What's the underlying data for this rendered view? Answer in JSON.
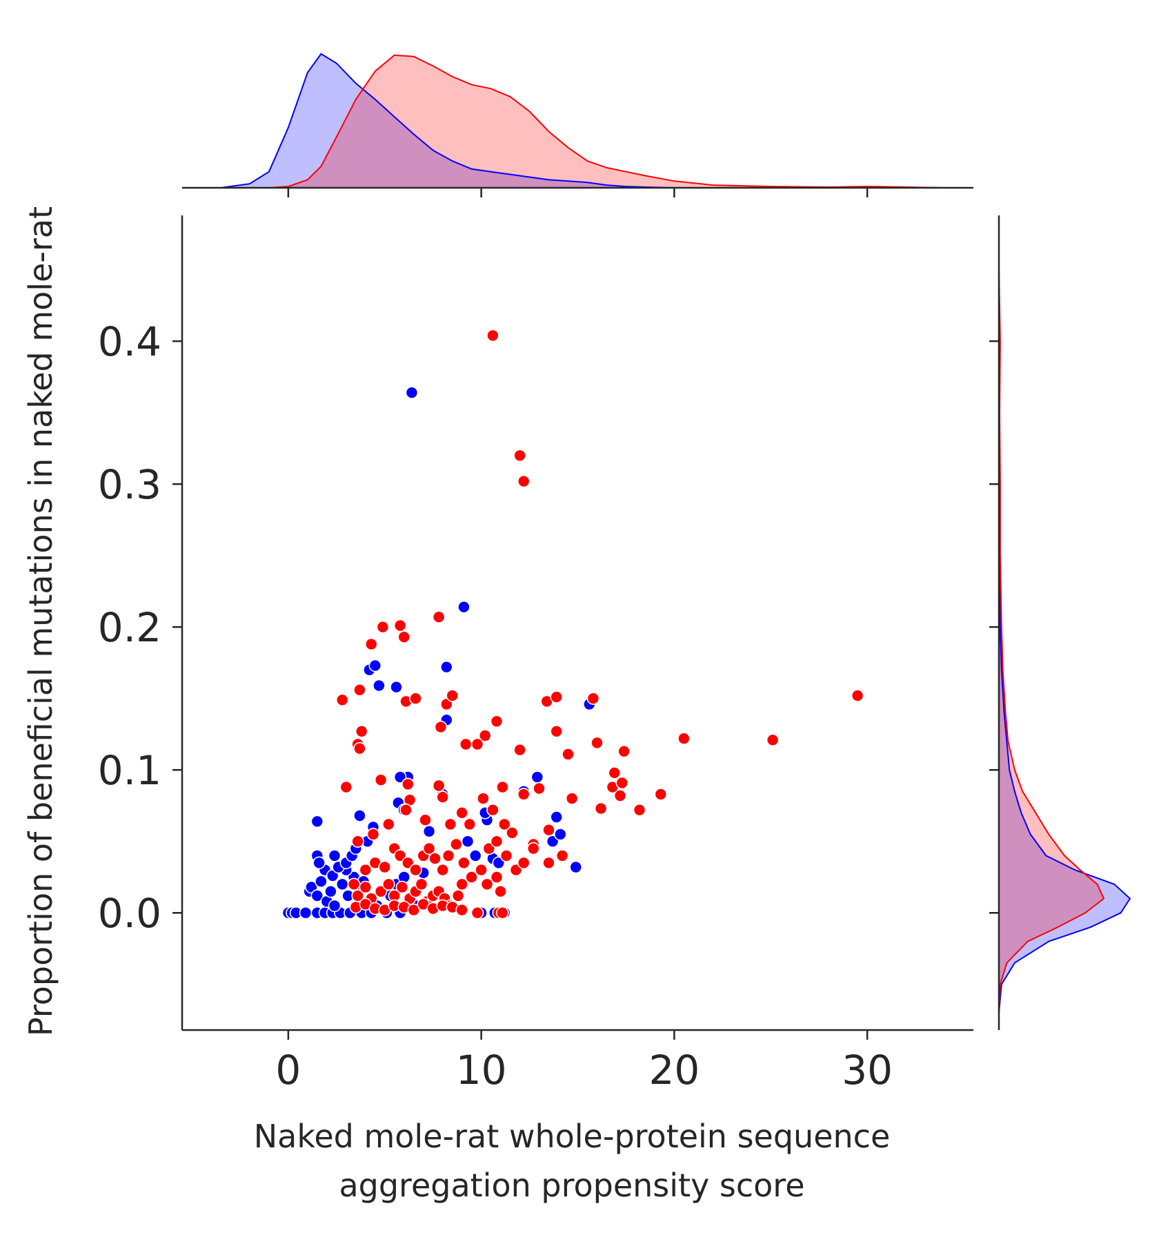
{
  "chart_data": {
    "type": "scatter",
    "title": "",
    "xlabel_lines": [
      "Naked mole-rat whole-protein sequence",
      "aggregation propensity score"
    ],
    "ylabel": "Proportion of beneficial mutations in naked mole-rat",
    "xlim": [
      -5.5,
      35.5
    ],
    "ylim": [
      -0.082,
      0.488
    ],
    "xticks": [
      0,
      10,
      20,
      30
    ],
    "xtick_labels": [
      "0",
      "10",
      "20",
      "30"
    ],
    "yticks": [
      0.0,
      0.1,
      0.2,
      0.3,
      0.4
    ],
    "ytick_labels": [
      "0.0",
      "0.1",
      "0.2",
      "0.3",
      "0.4"
    ],
    "grid": false,
    "legend": "none",
    "marginals": "kde (top for x, right for y)",
    "series": [
      {
        "color": "#0000ff",
        "points": [
          [
            0,
            0
          ],
          [
            0.2,
            0
          ],
          [
            0.4,
            0
          ],
          [
            0.9,
            0
          ],
          [
            1.5,
            0
          ],
          [
            1.9,
            0
          ],
          [
            2.3,
            0
          ],
          [
            2.7,
            0
          ],
          [
            3.2,
            0
          ],
          [
            3.8,
            0
          ],
          [
            4.3,
            0
          ],
          [
            5.1,
            0
          ],
          [
            5.8,
            0
          ],
          [
            10,
            0
          ],
          [
            11.2,
            0
          ],
          [
            10.7,
            0
          ],
          [
            1.1,
            0.015
          ],
          [
            1.2,
            0.018
          ],
          [
            1.5,
            0.012
          ],
          [
            1.7,
            0.022
          ],
          [
            2.0,
            0.008
          ],
          [
            2.2,
            0.015
          ],
          [
            2.4,
            0.005
          ],
          [
            1.9,
            0.03
          ],
          [
            2.3,
            0.026
          ],
          [
            2.8,
            0.02
          ],
          [
            3.1,
            0.012
          ],
          [
            3.4,
            0.025
          ],
          [
            3.7,
            0.018
          ],
          [
            3.9,
            0.022
          ],
          [
            4.3,
            0.01
          ],
          [
            4.6,
            0.005
          ],
          [
            5.0,
            0.015
          ],
          [
            5.3,
            0.012
          ],
          [
            5.6,
            0.02
          ],
          [
            6.0,
            0.025
          ],
          [
            6.6,
            0.005
          ],
          [
            7.0,
            0.028
          ],
          [
            3.0,
            0.03
          ],
          [
            1.5,
            0.04
          ],
          [
            1.6,
            0.035
          ],
          [
            2.4,
            0.04
          ],
          [
            2.6,
            0.032
          ],
          [
            3.0,
            0.035
          ],
          [
            3.3,
            0.04
          ],
          [
            3.5,
            0.045
          ],
          [
            4.4,
            0.06
          ],
          [
            1.5,
            0.064
          ],
          [
            3.7,
            0.068
          ],
          [
            4.1,
            0.05
          ],
          [
            6.2,
            0.095
          ],
          [
            5.8,
            0.095
          ],
          [
            5.7,
            0.077
          ],
          [
            6.0,
            0.072
          ],
          [
            7.3,
            0.057
          ],
          [
            9.3,
            0.05
          ],
          [
            9.7,
            0.04
          ],
          [
            10.3,
            0.065
          ],
          [
            10.2,
            0.07
          ],
          [
            10.6,
            0.038
          ],
          [
            10.9,
            0.035
          ],
          [
            12.2,
            0.085
          ],
          [
            12.9,
            0.095
          ],
          [
            13.5,
            0.058
          ],
          [
            13.7,
            0.05
          ],
          [
            13.9,
            0.067
          ],
          [
            14.1,
            0.055
          ],
          [
            14.9,
            0.032
          ],
          [
            8.0,
            0.083
          ],
          [
            4.2,
            0.17
          ],
          [
            4.5,
            0.173
          ],
          [
            4.7,
            0.159
          ],
          [
            5.6,
            0.158
          ],
          [
            6.4,
            0.364
          ],
          [
            9.1,
            0.214
          ],
          [
            8.2,
            0.172
          ],
          [
            8.2,
            0.135
          ],
          [
            15.6,
            0.146
          ]
        ]
      },
      {
        "color": "#ff0000",
        "points": [
          [
            10.6,
            0.404
          ],
          [
            12.0,
            0.32
          ],
          [
            12.2,
            0.302
          ],
          [
            5.8,
            0.201
          ],
          [
            6.0,
            0.193
          ],
          [
            7.8,
            0.207
          ],
          [
            4.9,
            0.2
          ],
          [
            4.3,
            0.188
          ],
          [
            2.8,
            0.149
          ],
          [
            3.7,
            0.156
          ],
          [
            6.1,
            0.148
          ],
          [
            6.6,
            0.15
          ],
          [
            8.2,
            0.146
          ],
          [
            8.5,
            0.152
          ],
          [
            7.9,
            0.13
          ],
          [
            3.6,
            0.118
          ],
          [
            3.7,
            0.115
          ],
          [
            3.8,
            0.127
          ],
          [
            10.8,
            0.134
          ],
          [
            10.2,
            0.124
          ],
          [
            9.8,
            0.118
          ],
          [
            9.2,
            0.118
          ],
          [
            12.0,
            0.114
          ],
          [
            13.4,
            0.148
          ],
          [
            13.9,
            0.151
          ],
          [
            13.9,
            0.127
          ],
          [
            14.5,
            0.111
          ],
          [
            15.8,
            0.15
          ],
          [
            16.0,
            0.119
          ],
          [
            17.4,
            0.113
          ],
          [
            20.5,
            0.122
          ],
          [
            25.1,
            0.121
          ],
          [
            29.5,
            0.152
          ],
          [
            3.0,
            0.088
          ],
          [
            4.8,
            0.093
          ],
          [
            6.2,
            0.09
          ],
          [
            6.3,
            0.079
          ],
          [
            7.8,
            0.089
          ],
          [
            8.0,
            0.081
          ],
          [
            9.0,
            0.07
          ],
          [
            10.1,
            0.08
          ],
          [
            11.1,
            0.088
          ],
          [
            12.2,
            0.083
          ],
          [
            13.0,
            0.087
          ],
          [
            14.7,
            0.08
          ],
          [
            16.2,
            0.073
          ],
          [
            16.8,
            0.088
          ],
          [
            16.9,
            0.098
          ],
          [
            17.3,
            0.091
          ],
          [
            17.2,
            0.082
          ],
          [
            18.2,
            0.072
          ],
          [
            19.3,
            0.083
          ],
          [
            13.5,
            0.058
          ],
          [
            12.7,
            0.048
          ],
          [
            11.6,
            0.056
          ],
          [
            11.2,
            0.062
          ],
          [
            10.6,
            0.072
          ],
          [
            9.4,
            0.062
          ],
          [
            8.4,
            0.062
          ],
          [
            7.1,
            0.065
          ],
          [
            6.1,
            0.072
          ],
          [
            5.2,
            0.062
          ],
          [
            4.4,
            0.055
          ],
          [
            3.6,
            0.05
          ],
          [
            4.0,
            0.03
          ],
          [
            4.5,
            0.035
          ],
          [
            5.0,
            0.032
          ],
          [
            5.5,
            0.045
          ],
          [
            5.8,
            0.04
          ],
          [
            6.2,
            0.035
          ],
          [
            6.6,
            0.03
          ],
          [
            7.0,
            0.04
          ],
          [
            7.3,
            0.045
          ],
          [
            7.6,
            0.038
          ],
          [
            8.0,
            0.03
          ],
          [
            8.3,
            0.04
          ],
          [
            8.7,
            0.048
          ],
          [
            9.1,
            0.035
          ],
          [
            9.5,
            0.025
          ],
          [
            10.0,
            0.03
          ],
          [
            10.4,
            0.045
          ],
          [
            10.8,
            0.05
          ],
          [
            11.3,
            0.04
          ],
          [
            11.8,
            0.03
          ],
          [
            12.2,
            0.035
          ],
          [
            12.7,
            0.045
          ],
          [
            13.5,
            0.035
          ],
          [
            14.2,
            0.04
          ],
          [
            3.4,
            0.02
          ],
          [
            3.6,
            0.012
          ],
          [
            4.0,
            0.018
          ],
          [
            4.3,
            0.01
          ],
          [
            4.8,
            0.015
          ],
          [
            5.2,
            0.02
          ],
          [
            5.5,
            0.012
          ],
          [
            5.9,
            0.018
          ],
          [
            6.3,
            0.01
          ],
          [
            6.6,
            0.015
          ],
          [
            6.9,
            0.02
          ],
          [
            7.2,
            0.008
          ],
          [
            7.5,
            0.012
          ],
          [
            7.8,
            0.015
          ],
          [
            8.1,
            0.01
          ],
          [
            8.4,
            0.005
          ],
          [
            8.8,
            0.012
          ],
          [
            9.0,
            0.02
          ],
          [
            9.5,
            0.025
          ],
          [
            10.3,
            0.02
          ],
          [
            10.8,
            0.025
          ],
          [
            11.0,
            0.015
          ],
          [
            3.5,
            0.004
          ],
          [
            4.0,
            0.006
          ],
          [
            4.5,
            0.003
          ],
          [
            5.0,
            0.002
          ],
          [
            5.5,
            0.005
          ],
          [
            6.0,
            0.004
          ],
          [
            6.5,
            0.002
          ],
          [
            7.0,
            0.006
          ],
          [
            7.5,
            0.003
          ],
          [
            8.0,
            0.005
          ],
          [
            8.5,
            0.004
          ],
          [
            9.0,
            0.002
          ],
          [
            9.8,
            0.0
          ],
          [
            10.9,
            0.0
          ],
          [
            11.1,
            0.0
          ]
        ]
      }
    ],
    "kde_x": {
      "x": [
        -3.5,
        -2,
        -1,
        0,
        1,
        1.7,
        2.5,
        3.5,
        4.5,
        5.5,
        6.5,
        7.5,
        8.5,
        9.5,
        10.5,
        11.5,
        12.5,
        13.5,
        14.5,
        15.5,
        16.5,
        17.5,
        18.5,
        20,
        22,
        25,
        28,
        30,
        32,
        34
      ],
      "blue": [
        0.0,
        0.03,
        0.12,
        0.45,
        0.86,
        1.0,
        0.93,
        0.78,
        0.66,
        0.53,
        0.4,
        0.28,
        0.2,
        0.14,
        0.12,
        0.1,
        0.08,
        0.06,
        0.05,
        0.04,
        0.02,
        0.01,
        0.005,
        0.0,
        0.0,
        0.0,
        0.0,
        0.0,
        0.0,
        0.0
      ],
      "red": [
        0.0,
        0.0,
        0.0,
        0.01,
        0.06,
        0.16,
        0.38,
        0.66,
        0.87,
        0.99,
        0.98,
        0.91,
        0.83,
        0.77,
        0.74,
        0.68,
        0.57,
        0.42,
        0.3,
        0.2,
        0.15,
        0.12,
        0.09,
        0.05,
        0.02,
        0.01,
        0.005,
        0.01,
        0.005,
        0.0
      ]
    },
    "kde_y": {
      "y": [
        -0.07,
        -0.05,
        -0.035,
        -0.02,
        -0.01,
        0.0,
        0.01,
        0.02,
        0.03,
        0.04,
        0.055,
        0.07,
        0.085,
        0.1,
        0.12,
        0.14,
        0.17,
        0.2,
        0.25,
        0.3,
        0.35,
        0.4,
        0.45
      ],
      "blue": [
        0.0,
        0.02,
        0.12,
        0.38,
        0.7,
        0.93,
        1.0,
        0.88,
        0.58,
        0.36,
        0.24,
        0.17,
        0.12,
        0.08,
        0.06,
        0.04,
        0.02,
        0.01,
        0.005,
        0.003,
        0.005,
        0.002,
        0.0
      ],
      "red": [
        0.0,
        0.01,
        0.06,
        0.22,
        0.45,
        0.66,
        0.8,
        0.75,
        0.62,
        0.5,
        0.38,
        0.28,
        0.18,
        0.12,
        0.07,
        0.05,
        0.03,
        0.02,
        0.01,
        0.01,
        0.005,
        0.01,
        0.0
      ]
    }
  }
}
